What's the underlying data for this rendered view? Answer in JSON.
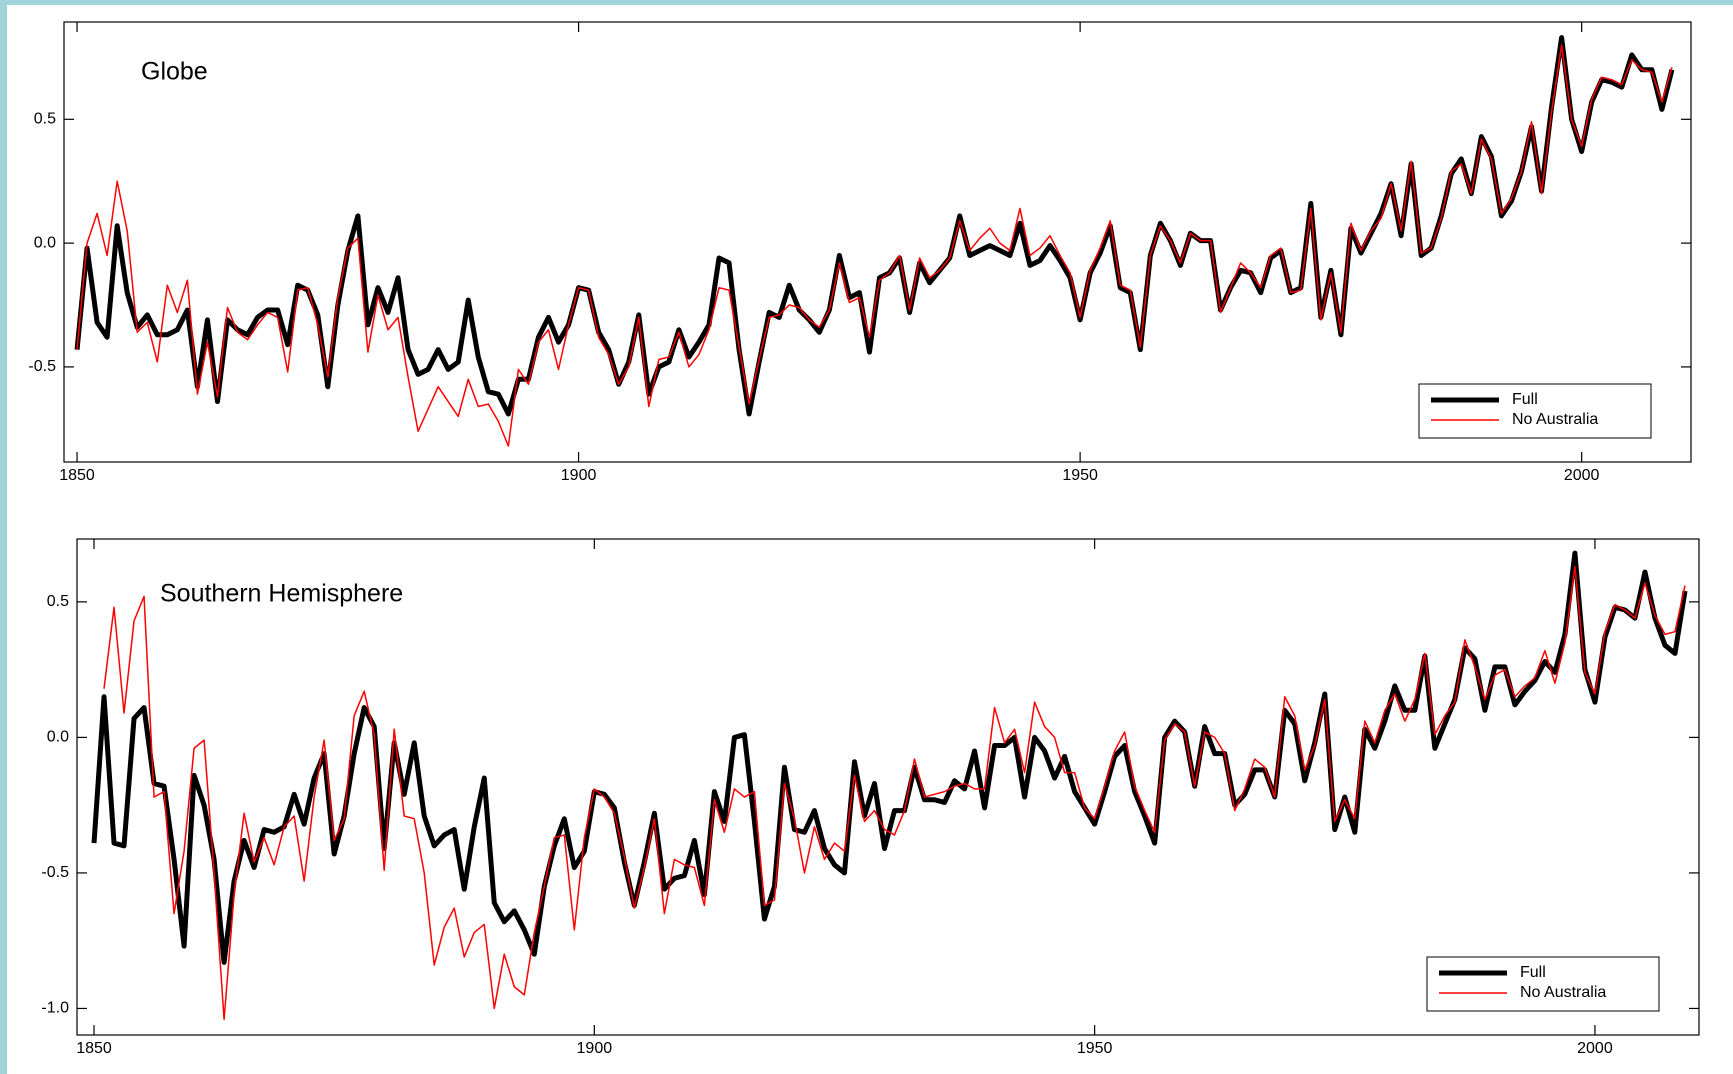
{
  "chart_data": [
    {
      "type": "line",
      "title": "Globe",
      "legend": "lower right",
      "x": [
        1850,
        1851,
        1852,
        1853,
        1854,
        1855,
        1856,
        1857,
        1858,
        1859,
        1860,
        1861,
        1862,
        1863,
        1864,
        1865,
        1866,
        1867,
        1868,
        1869,
        1870,
        1871,
        1872,
        1873,
        1874,
        1875,
        1876,
        1877,
        1878,
        1879,
        1880,
        1881,
        1882,
        1883,
        1884,
        1885,
        1886,
        1887,
        1888,
        1889,
        1890,
        1891,
        1892,
        1893,
        1894,
        1895,
        1896,
        1897,
        1898,
        1899,
        1900,
        1901,
        1902,
        1903,
        1904,
        1905,
        1906,
        1907,
        1908,
        1909,
        1910,
        1911,
        1912,
        1913,
        1914,
        1915,
        1916,
        1917,
        1918,
        1919,
        1920,
        1921,
        1922,
        1923,
        1924,
        1925,
        1926,
        1927,
        1928,
        1929,
        1930,
        1931,
        1932,
        1933,
        1934,
        1935,
        1936,
        1937,
        1938,
        1939,
        1940,
        1941,
        1942,
        1943,
        1944,
        1945,
        1946,
        1947,
        1948,
        1949,
        1950,
        1951,
        1952,
        1953,
        1954,
        1955,
        1956,
        1957,
        1958,
        1959,
        1960,
        1961,
        1962,
        1963,
        1964,
        1965,
        1966,
        1967,
        1968,
        1969,
        1970,
        1971,
        1972,
        1973,
        1974,
        1975,
        1976,
        1977,
        1978,
        1979,
        1980,
        1981,
        1982,
        1983,
        1984,
        1985,
        1986,
        1987,
        1988,
        1989,
        1990,
        1991,
        1992,
        1993,
        1994,
        1995,
        1996,
        1997,
        1998,
        1999,
        2000,
        2001,
        2002,
        2003,
        2004,
        2005,
        2006,
        2007,
        2008,
        2009
      ],
      "xlim": [
        1848.7,
        2010.9
      ],
      "xticks": [
        1850,
        1900,
        1950,
        2000
      ],
      "ylim": [
        -0.884,
        0.893
      ],
      "yticks": [
        0.5,
        {
          "value": 0,
          "label": "0.0"
        },
        -0.5
      ],
      "series": [
        {
          "name": "Full",
          "color": "#000000",
          "values": [
            -0.43,
            -0.02,
            -0.32,
            -0.38,
            0.07,
            -0.2,
            -0.34,
            -0.29,
            -0.37,
            -0.37,
            -0.35,
            -0.27,
            -0.58,
            -0.31,
            -0.64,
            -0.31,
            -0.35,
            -0.37,
            -0.3,
            -0.27,
            -0.27,
            -0.41,
            -0.17,
            -0.19,
            -0.29,
            -0.58,
            -0.25,
            -0.03,
            0.11,
            -0.33,
            -0.18,
            -0.28,
            -0.14,
            -0.43,
            -0.53,
            -0.51,
            -0.43,
            -0.51,
            -0.48,
            -0.23,
            -0.46,
            -0.6,
            -0.61,
            -0.69,
            -0.55,
            -0.55,
            -0.38,
            -0.3,
            -0.4,
            -0.33,
            -0.18,
            -0.19,
            -0.36,
            -0.43,
            -0.57,
            -0.48,
            -0.29,
            -0.61,
            -0.5,
            -0.48,
            -0.35,
            -0.46,
            -0.4,
            -0.33,
            -0.06,
            -0.08,
            -0.43,
            -0.69,
            -0.48,
            -0.28,
            -0.3,
            -0.17,
            -0.27,
            -0.31,
            -0.36,
            -0.27,
            -0.05,
            -0.22,
            -0.2,
            -0.44,
            -0.14,
            -0.12,
            -0.06,
            -0.28,
            -0.08,
            -0.16,
            -0.11,
            -0.06,
            0.11,
            -0.05,
            -0.03,
            -0.01,
            -0.03,
            -0.05,
            0.08,
            -0.09,
            -0.07,
            -0.01,
            -0.07,
            -0.14,
            -0.31,
            -0.12,
            -0.04,
            0.07,
            -0.18,
            -0.2,
            -0.43,
            -0.05,
            0.08,
            0.01,
            -0.09,
            0.04,
            0.01,
            0.01,
            -0.27,
            -0.18,
            -0.11,
            -0.12,
            -0.2,
            -0.06,
            -0.03,
            -0.2,
            -0.18,
            0.16,
            -0.3,
            -0.11,
            -0.37,
            0.06,
            -0.04,
            0.04,
            0.12,
            0.24,
            0.03,
            0.32,
            -0.05,
            -0.02,
            0.11,
            0.28,
            0.34,
            0.2,
            0.43,
            0.35,
            0.11,
            0.17,
            0.29,
            0.47,
            0.21,
            0.55,
            0.83,
            0.5,
            0.37,
            0.57,
            0.66,
            0.65,
            0.63,
            0.76,
            0.7,
            0.7,
            0.54,
            0.7
          ]
        },
        {
          "name": "No Australia",
          "color": "#ff0000",
          "values": [
            -0.43,
            0.0,
            0.12,
            -0.05,
            0.25,
            0.05,
            -0.36,
            -0.32,
            -0.48,
            -0.17,
            -0.28,
            -0.15,
            -0.61,
            -0.4,
            -0.62,
            -0.26,
            -0.36,
            -0.39,
            -0.33,
            -0.28,
            -0.3,
            -0.52,
            -0.19,
            -0.18,
            -0.33,
            -0.54,
            -0.22,
            -0.02,
            0.02,
            -0.44,
            -0.21,
            -0.35,
            -0.3,
            -0.54,
            -0.76,
            -0.67,
            -0.58,
            -0.64,
            -0.7,
            -0.55,
            -0.66,
            -0.65,
            -0.72,
            -0.82,
            -0.51,
            -0.57,
            -0.4,
            -0.35,
            -0.51,
            -0.33,
            -0.18,
            -0.19,
            -0.38,
            -0.45,
            -0.57,
            -0.5,
            -0.3,
            -0.66,
            -0.47,
            -0.46,
            -0.36,
            -0.5,
            -0.45,
            -0.35,
            -0.18,
            -0.19,
            -0.42,
            -0.65,
            -0.47,
            -0.3,
            -0.29,
            -0.25,
            -0.26,
            -0.31,
            -0.34,
            -0.27,
            -0.08,
            -0.24,
            -0.22,
            -0.38,
            -0.15,
            -0.12,
            -0.05,
            -0.27,
            -0.06,
            -0.14,
            -0.11,
            -0.06,
            0.09,
            -0.03,
            0.02,
            0.06,
            0.0,
            -0.03,
            0.14,
            -0.05,
            -0.02,
            0.03,
            -0.05,
            -0.12,
            -0.3,
            -0.11,
            -0.02,
            0.09,
            -0.17,
            -0.19,
            -0.42,
            -0.05,
            0.07,
            0.01,
            -0.08,
            0.04,
            0.01,
            0.01,
            -0.28,
            -0.18,
            -0.08,
            -0.12,
            -0.18,
            -0.05,
            -0.02,
            -0.2,
            -0.19,
            0.14,
            -0.31,
            -0.12,
            -0.36,
            0.08,
            -0.03,
            0.05,
            0.1,
            0.24,
            0.05,
            0.33,
            -0.04,
            -0.02,
            0.1,
            0.29,
            0.32,
            0.2,
            0.42,
            0.34,
            0.12,
            0.18,
            0.29,
            0.49,
            0.2,
            0.53,
            0.8,
            0.5,
            0.39,
            0.58,
            0.67,
            0.66,
            0.64,
            0.74,
            0.7,
            0.69,
            0.57,
            0.71
          ]
        }
      ]
    },
    {
      "type": "line",
      "title": "Southern Hemisphere",
      "legend": "lower right",
      "x": [
        1850,
        1851,
        1852,
        1853,
        1854,
        1855,
        1856,
        1857,
        1858,
        1859,
        1860,
        1861,
        1862,
        1863,
        1864,
        1865,
        1866,
        1867,
        1868,
        1869,
        1870,
        1871,
        1872,
        1873,
        1874,
        1875,
        1876,
        1877,
        1878,
        1879,
        1880,
        1881,
        1882,
        1883,
        1884,
        1885,
        1886,
        1887,
        1888,
        1889,
        1890,
        1891,
        1892,
        1893,
        1894,
        1895,
        1896,
        1897,
        1898,
        1899,
        1900,
        1901,
        1902,
        1903,
        1904,
        1905,
        1906,
        1907,
        1908,
        1909,
        1910,
        1911,
        1912,
        1913,
        1914,
        1915,
        1916,
        1917,
        1918,
        1919,
        1920,
        1921,
        1922,
        1923,
        1924,
        1925,
        1926,
        1927,
        1928,
        1929,
        1930,
        1931,
        1932,
        1933,
        1934,
        1935,
        1936,
        1937,
        1938,
        1939,
        1940,
        1941,
        1942,
        1943,
        1944,
        1945,
        1946,
        1947,
        1948,
        1949,
        1950,
        1951,
        1952,
        1953,
        1954,
        1955,
        1956,
        1957,
        1958,
        1959,
        1960,
        1961,
        1962,
        1963,
        1964,
        1965,
        1966,
        1967,
        1968,
        1969,
        1970,
        1971,
        1972,
        1973,
        1974,
        1975,
        1976,
        1977,
        1978,
        1979,
        1980,
        1981,
        1982,
        1983,
        1984,
        1985,
        1986,
        1987,
        1988,
        1989,
        1990,
        1991,
        1992,
        1993,
        1994,
        1995,
        1996,
        1997,
        1998,
        1999,
        2000,
        2001,
        2002,
        2003,
        2004,
        2005,
        2006,
        2007,
        2008,
        2009
      ],
      "xlim": [
        1848.3,
        2010.4
      ],
      "xticks": [
        1850,
        1900,
        1950,
        2000
      ],
      "ylim": [
        -1.098,
        0.732
      ],
      "yticks": [
        0.5,
        {
          "value": 0,
          "label": "0.0"
        },
        -0.5,
        {
          "value": -1,
          "label": "-1.0"
        }
      ],
      "series": [
        {
          "name": "Full",
          "color": "#000000",
          "values": [
            -0.39,
            0.15,
            -0.39,
            -0.4,
            0.07,
            0.11,
            -0.17,
            -0.18,
            -0.45,
            -0.77,
            -0.14,
            -0.25,
            -0.45,
            -0.83,
            -0.53,
            -0.38,
            -0.48,
            -0.34,
            -0.35,
            -0.33,
            -0.21,
            -0.32,
            -0.15,
            -0.06,
            -0.43,
            -0.29,
            -0.06,
            0.11,
            0.04,
            -0.41,
            -0.02,
            -0.21,
            -0.02,
            -0.29,
            -0.4,
            -0.36,
            -0.34,
            -0.56,
            -0.33,
            -0.15,
            -0.61,
            -0.68,
            -0.64,
            -0.71,
            -0.8,
            -0.55,
            -0.4,
            -0.3,
            -0.48,
            -0.42,
            -0.2,
            -0.21,
            -0.26,
            -0.46,
            -0.62,
            -0.46,
            -0.28,
            -0.56,
            -0.52,
            -0.51,
            -0.38,
            -0.58,
            -0.2,
            -0.31,
            0.0,
            0.01,
            -0.31,
            -0.67,
            -0.55,
            -0.11,
            -0.34,
            -0.35,
            -0.27,
            -0.41,
            -0.47,
            -0.5,
            -0.09,
            -0.29,
            -0.17,
            -0.41,
            -0.27,
            -0.27,
            -0.11,
            -0.23,
            -0.23,
            -0.24,
            -0.16,
            -0.19,
            -0.05,
            -0.26,
            -0.03,
            -0.03,
            0.0,
            -0.22,
            0.0,
            -0.05,
            -0.15,
            -0.07,
            -0.2,
            -0.26,
            -0.32,
            -0.2,
            -0.07,
            -0.03,
            -0.2,
            -0.29,
            -0.39,
            0.0,
            0.06,
            0.02,
            -0.18,
            0.04,
            -0.06,
            -0.06,
            -0.25,
            -0.21,
            -0.12,
            -0.12,
            -0.22,
            0.1,
            0.05,
            -0.16,
            -0.02,
            0.16,
            -0.34,
            -0.22,
            -0.35,
            0.03,
            -0.04,
            0.06,
            0.19,
            0.1,
            0.1,
            0.3,
            -0.04,
            0.05,
            0.14,
            0.33,
            0.29,
            0.1,
            0.26,
            0.26,
            0.12,
            0.17,
            0.21,
            0.28,
            0.24,
            0.38,
            0.68,
            0.25,
            0.13,
            0.37,
            0.48,
            0.47,
            0.44,
            0.61,
            0.44,
            0.34,
            0.31,
            0.54
          ]
        },
        {
          "name": "No Australia",
          "color": "#ff0000",
          "values": [
            null,
            0.18,
            0.48,
            0.09,
            0.43,
            0.52,
            -0.22,
            -0.2,
            -0.65,
            -0.42,
            -0.04,
            -0.01,
            -0.5,
            -1.04,
            -0.58,
            -0.28,
            -0.46,
            -0.37,
            -0.47,
            -0.33,
            -0.29,
            -0.53,
            -0.22,
            -0.01,
            -0.38,
            -0.3,
            0.08,
            0.17,
            0.01,
            -0.49,
            0.03,
            -0.29,
            -0.3,
            -0.5,
            -0.84,
            -0.7,
            -0.63,
            -0.81,
            -0.72,
            -0.69,
            -1.0,
            -0.8,
            -0.92,
            -0.95,
            -0.72,
            -0.55,
            -0.37,
            -0.36,
            -0.71,
            -0.37,
            -0.19,
            -0.22,
            -0.28,
            -0.44,
            -0.63,
            -0.48,
            -0.3,
            -0.65,
            -0.45,
            -0.47,
            -0.48,
            -0.62,
            -0.23,
            -0.35,
            -0.19,
            -0.22,
            -0.2,
            -0.62,
            -0.6,
            -0.17,
            -0.3,
            -0.5,
            -0.33,
            -0.45,
            -0.39,
            -0.42,
            -0.14,
            -0.31,
            -0.27,
            -0.34,
            -0.36,
            -0.27,
            -0.08,
            -0.22,
            -0.21,
            -0.2,
            -0.18,
            -0.17,
            -0.19,
            -0.19,
            0.11,
            -0.02,
            0.03,
            -0.13,
            0.13,
            0.04,
            0.0,
            -0.13,
            -0.13,
            -0.26,
            -0.3,
            -0.18,
            -0.05,
            0.02,
            -0.18,
            -0.27,
            -0.35,
            -0.01,
            0.05,
            0.02,
            -0.18,
            0.02,
            0.0,
            -0.06,
            -0.27,
            -0.19,
            -0.08,
            -0.11,
            -0.22,
            0.15,
            0.08,
            -0.12,
            -0.03,
            0.14,
            -0.31,
            -0.23,
            -0.3,
            0.06,
            -0.02,
            0.1,
            0.16,
            0.06,
            0.14,
            0.31,
            0.01,
            0.08,
            0.13,
            0.36,
            0.26,
            0.14,
            0.23,
            0.25,
            0.15,
            0.19,
            0.22,
            0.32,
            0.2,
            0.35,
            0.63,
            0.24,
            0.16,
            0.39,
            0.49,
            0.47,
            0.44,
            0.57,
            0.45,
            0.38,
            0.39,
            0.56
          ]
        }
      ]
    }
  ]
}
